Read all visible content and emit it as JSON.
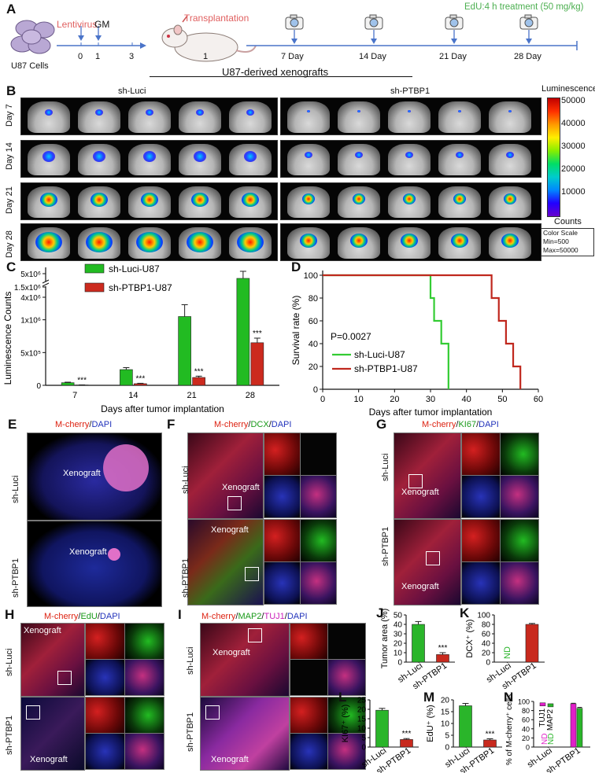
{
  "panel_letters": [
    "A",
    "B",
    "C",
    "D",
    "E",
    "F",
    "G",
    "H",
    "I",
    "J",
    "K",
    "L",
    "M",
    "N"
  ],
  "panelA": {
    "cells_label": "U87 Cells",
    "lentivirus_label": "Lentivirus",
    "gm_label": "GM",
    "ticks_pre": [
      "0",
      "1",
      "3"
    ],
    "transplant_label": "Transplantation",
    "transplant_day": "1",
    "edu_label": "EdU:4 h treatment (50 mg/kg)",
    "days": [
      "7 Day",
      "14 Day",
      "21 Day",
      "28 Day"
    ],
    "colors": {
      "accent_red": "#e06060",
      "edu_green": "#4caf50",
      "arrow_blue": "#4a74c9"
    }
  },
  "panelB": {
    "header": "U87-derived xenografts",
    "group_left": "sh-Luci",
    "group_right": "sh-PTBP1",
    "rows": [
      "Day 7",
      "Day 14",
      "Day 21",
      "Day 28"
    ],
    "scale_title": "Luminescence",
    "scale_ticks": [
      "50000",
      "40000",
      "30000",
      "20000",
      "10000"
    ],
    "scale_unit": "Counts",
    "scale_box": [
      "Color Scale",
      "Min=500",
      "Max=50000"
    ]
  },
  "panelE": {
    "title_red": "M-cherry",
    "title_sep": "/",
    "title_blue": "DAPI",
    "rows": [
      "sh-Luci",
      "sh-PTBP1"
    ],
    "label": "Xenograft"
  },
  "panelF": {
    "title_red": "M-cherry",
    "title_green": "DCX",
    "title_blue": "DAPI",
    "rows": [
      "sh-Luci",
      "sh-PTBP1"
    ],
    "label": "Xenograft"
  },
  "panelG": {
    "title_red": "M-cherry",
    "title_green": "KI67",
    "title_blue": "DAPI",
    "rows": [
      "sh-Luci",
      "sh-PTBP1"
    ],
    "label": "Xenograft"
  },
  "panelH": {
    "title_red": "M-cherry",
    "title_green": "EdU",
    "title_blue": "DAPI",
    "rows": [
      "sh-Luci",
      "sh-PTBP1"
    ],
    "label": "Xenograft"
  },
  "panelI": {
    "title_red": "M-cherry",
    "title_green": "MAP2",
    "title_magenta": "TUJ1",
    "title_blue": "DAPI",
    "rows": [
      "sh-Luci",
      "sh-PTBP1"
    ],
    "label": "Xenograft"
  },
  "chart_data": [
    {
      "id": "C",
      "type": "bar",
      "categories": [
        "7",
        "14",
        "21",
        "28"
      ],
      "series": [
        {
          "name": "sh-Luci-U87",
          "color": "#22bb22",
          "values": [
            40000,
            240000,
            1050000,
            4800000
          ],
          "errors": [
            8000,
            30000,
            180000,
            300000
          ]
        },
        {
          "name": "sh-PTBP1-U87",
          "color": "#cc2a1e",
          "values": [
            5000,
            25000,
            120000,
            650000
          ],
          "errors": [
            2000,
            6000,
            20000,
            70000
          ]
        }
      ],
      "significance": [
        "***",
        "***",
        "***",
        "***"
      ],
      "xlabel": "Days after tumor implantation",
      "ylabel": "Luminescence Counts",
      "yticks_lower": [
        "0",
        "5x10⁵",
        "1x10⁶",
        "1.5x10⁶"
      ],
      "yticks_upper": [
        "4x10⁶",
        "5x10⁶"
      ],
      "ylim": [
        0,
        5000000
      ]
    },
    {
      "id": "D",
      "type": "line",
      "series": [
        {
          "name": "sh-Luci-U87",
          "color": "#33cc33",
          "x": [
            0,
            30,
            30,
            31,
            31,
            33,
            33,
            35,
            35
          ],
          "y": [
            100,
            100,
            80,
            80,
            60,
            60,
            40,
            40,
            0
          ]
        },
        {
          "name": "sh-PTBP1-U87",
          "color": "#c0281e",
          "x": [
            0,
            47,
            47,
            49,
            49,
            51,
            51,
            53,
            53,
            55,
            55
          ],
          "y": [
            100,
            100,
            80,
            80,
            60,
            60,
            40,
            40,
            20,
            20,
            0
          ]
        }
      ],
      "annotation": "P=0.0027",
      "xlabel": "Days after tumor implantation",
      "ylabel": "Survival rate (%)",
      "xticks": [
        "0",
        "10",
        "20",
        "30",
        "40",
        "50",
        "60"
      ],
      "yticks": [
        "0",
        "20",
        "40",
        "60",
        "80",
        "100"
      ],
      "xlim": [
        0,
        60
      ],
      "ylim": [
        0,
        100
      ]
    },
    {
      "id": "J",
      "type": "bar",
      "categories": [
        "sh-Luci",
        "sh-PTBP1"
      ],
      "values": [
        40,
        8
      ],
      "errors": [
        3,
        2
      ],
      "colors": [
        "#2ab52a",
        "#c8291d"
      ],
      "significance": [
        "",
        "***"
      ],
      "ylabel": "Tumor area (%)",
      "yticks": [
        "0",
        "10",
        "20",
        "30",
        "40",
        "50"
      ],
      "ylim": [
        0,
        50
      ]
    },
    {
      "id": "K",
      "type": "bar",
      "categories": [
        "sh-Luci",
        "sh-PTBP1"
      ],
      "values": [
        0,
        80
      ],
      "errors": [
        0,
        2
      ],
      "colors": [
        "#2ab52a",
        "#c8291d"
      ],
      "nd_label": "ND",
      "ylabel": "DCX⁺ (%)",
      "yticks": [
        "0",
        "20",
        "40",
        "60",
        "80",
        "100"
      ],
      "ylim": [
        0,
        100
      ]
    },
    {
      "id": "L",
      "type": "bar",
      "categories": [
        "sh-Luci",
        "sh-PTBP1"
      ],
      "values": [
        19.5,
        4
      ],
      "errors": [
        1,
        0.5
      ],
      "colors": [
        "#2ab52a",
        "#c8291d"
      ],
      "significance": [
        "",
        "***"
      ],
      "ylabel": "KI67⁺ (%)",
      "yticks": [
        "0",
        "5",
        "10",
        "15",
        "20",
        "25"
      ],
      "ylim": [
        0,
        25
      ]
    },
    {
      "id": "M",
      "type": "bar",
      "categories": [
        "sh-Luci",
        "sh-PTBP1"
      ],
      "values": [
        17.5,
        3
      ],
      "errors": [
        1,
        0.5
      ],
      "colors": [
        "#2ab52a",
        "#c8291d"
      ],
      "significance": [
        "",
        "***"
      ],
      "ylabel": "EdU⁺ (%)",
      "yticks": [
        "0",
        "5",
        "10",
        "15",
        "20"
      ],
      "ylim": [
        0,
        20
      ]
    },
    {
      "id": "N",
      "type": "bar",
      "categories": [
        "sh-Luci",
        "sh-PTBP1"
      ],
      "series": [
        {
          "name": "TUJ1",
          "color": "#e020c8",
          "values": [
            0,
            95
          ],
          "errors": [
            0,
            1
          ]
        },
        {
          "name": "MAP2",
          "color": "#2ab52a",
          "values": [
            0,
            85
          ],
          "errors": [
            0,
            2
          ]
        }
      ],
      "legend_top": [
        {
          "name": "TUJ1",
          "value": 97
        },
        {
          "name": "MAP2",
          "value": 95
        }
      ],
      "nd_label": "ND",
      "ylabel": "% of M-cherry⁺ cells",
      "yticks": [
        "0",
        "20",
        "40",
        "60",
        "80",
        "100"
      ],
      "ylim": [
        0,
        100
      ]
    }
  ]
}
